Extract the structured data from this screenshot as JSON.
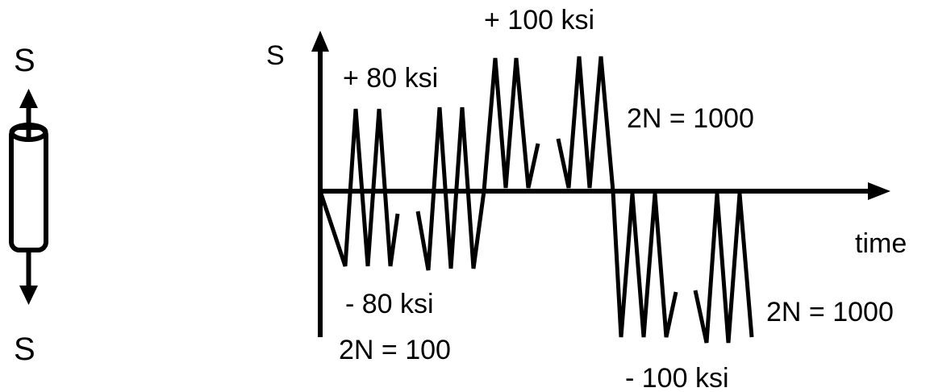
{
  "specimen": {
    "top_label": "S",
    "bottom_label": "S"
  },
  "axes": {
    "y_label": "S",
    "x_label": "time"
  },
  "annotations": {
    "pos_80": "+ 80 ksi",
    "neg_80": "- 80 ksi",
    "cycles_100": "2N = 100",
    "pos_100": "+ 100 ksi",
    "cycles_1000_top": "2N = 1000",
    "cycles_1000_bottom": "2N = 1000",
    "neg_100": "- 100 ksi"
  }
}
